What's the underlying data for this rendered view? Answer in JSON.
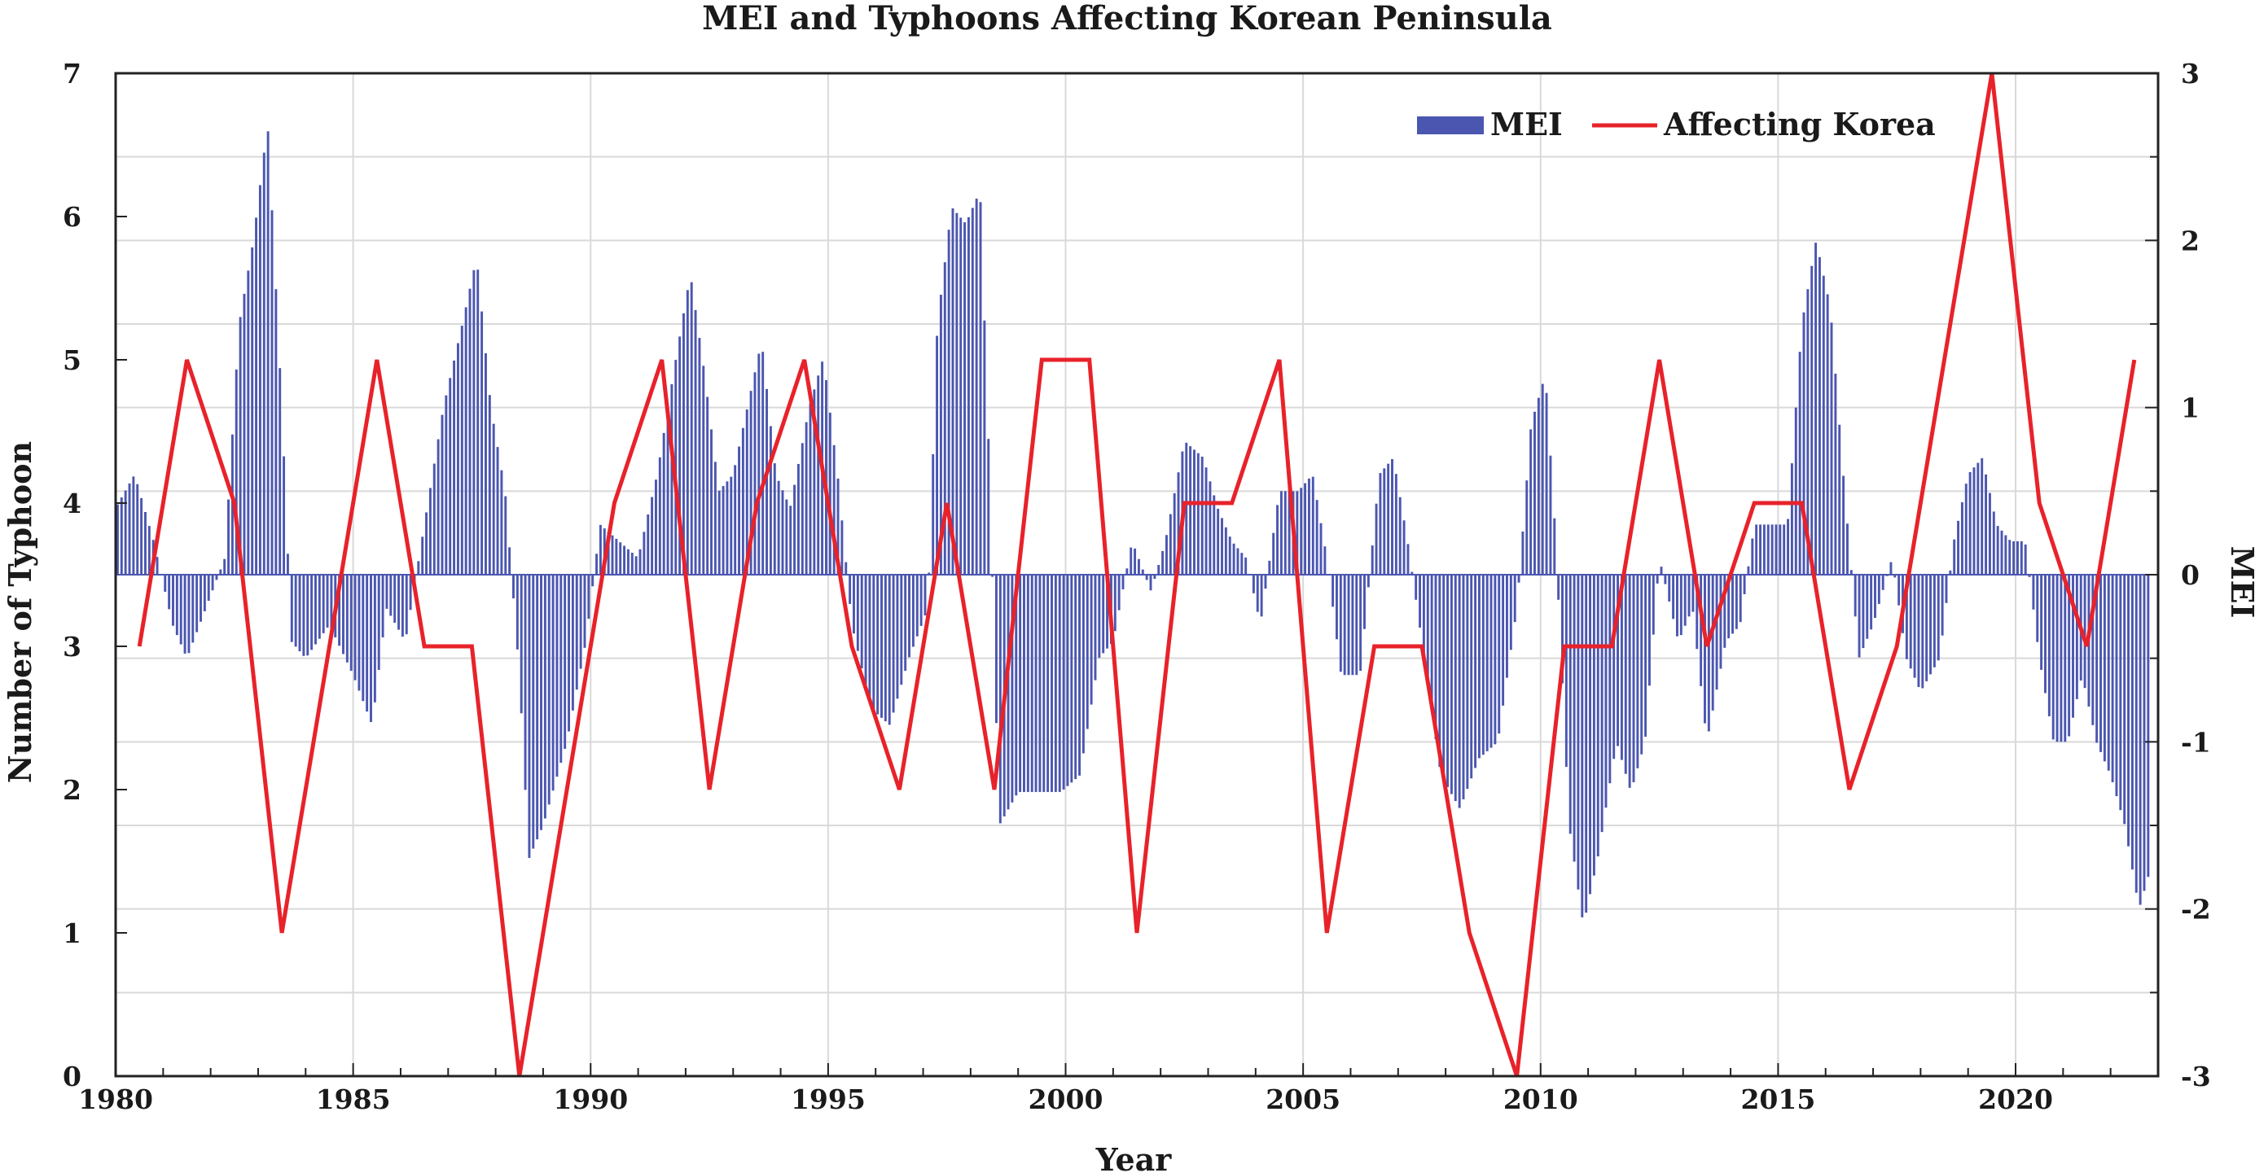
{
  "chart_data": {
    "type": "bar+line",
    "title": "MEI and Typhoons Affecting Korean Peninsula",
    "xlabel": "Year",
    "ylabel_left": "Number of Typhoon",
    "ylabel_right": "MEI",
    "xlim": [
      1980,
      2023
    ],
    "ylim_left": [
      0,
      7
    ],
    "ylim_right": [
      -3,
      3
    ],
    "xticks": [
      "1980",
      "1985",
      "1990",
      "1995",
      "2000",
      "2005",
      "2010",
      "2015",
      "2020"
    ],
    "yticks_left": [
      "0",
      "1",
      "2",
      "3",
      "4",
      "5",
      "6",
      "7"
    ],
    "yticks_right": [
      "-3",
      "-2",
      "-1",
      "0",
      "1",
      "2",
      "3"
    ],
    "grid": true,
    "legend_position": "top-right",
    "colors": {
      "mei": "#4b56b0",
      "korea": "#e8222a",
      "grid": "#d9d9d9",
      "axis": "#222222"
    },
    "series": [
      {
        "name": "MEI",
        "type": "bar",
        "frequency": "bi-monthly",
        "start": 1980.0,
        "anchors": [
          [
            1980.0,
            0.4
          ],
          [
            1980.4,
            0.6
          ],
          [
            1980.8,
            0.2
          ],
          [
            1981.2,
            -0.3
          ],
          [
            1981.5,
            -0.5
          ],
          [
            1981.9,
            -0.2
          ],
          [
            1982.3,
            0.1
          ],
          [
            1982.6,
            1.5
          ],
          [
            1982.9,
            2.0
          ],
          [
            1983.2,
            2.7
          ],
          [
            1983.5,
            1.0
          ],
          [
            1983.7,
            -0.4
          ],
          [
            1984.0,
            -0.5
          ],
          [
            1984.5,
            -0.3
          ],
          [
            1985.0,
            -0.6
          ],
          [
            1985.4,
            -0.9
          ],
          [
            1985.7,
            -0.2
          ],
          [
            1986.1,
            -0.4
          ],
          [
            1986.5,
            0.3
          ],
          [
            1986.9,
            1.0
          ],
          [
            1987.3,
            1.5
          ],
          [
            1987.6,
            1.9
          ],
          [
            1987.9,
            1.0
          ],
          [
            1988.2,
            0.5
          ],
          [
            1988.5,
            -0.6
          ],
          [
            1988.7,
            -1.7
          ],
          [
            1989.0,
            -1.5
          ],
          [
            1989.5,
            -1.0
          ],
          [
            1989.9,
            -0.4
          ],
          [
            1990.2,
            0.3
          ],
          [
            1990.6,
            0.2
          ],
          [
            1991.0,
            0.1
          ],
          [
            1991.4,
            0.6
          ],
          [
            1991.8,
            1.3
          ],
          [
            1992.1,
            1.8
          ],
          [
            1992.4,
            1.2
          ],
          [
            1992.7,
            0.5
          ],
          [
            1993.0,
            0.6
          ],
          [
            1993.3,
            1.0
          ],
          [
            1993.6,
            1.4
          ],
          [
            1993.9,
            0.6
          ],
          [
            1994.2,
            0.4
          ],
          [
            1994.6,
            1.0
          ],
          [
            1994.9,
            1.3
          ],
          [
            1995.2,
            0.6
          ],
          [
            1995.5,
            -0.3
          ],
          [
            1995.9,
            -0.8
          ],
          [
            1996.3,
            -0.9
          ],
          [
            1996.7,
            -0.5
          ],
          [
            1997.1,
            -0.2
          ],
          [
            1997.3,
            1.5
          ],
          [
            1997.6,
            2.2
          ],
          [
            1997.9,
            2.1
          ],
          [
            1998.2,
            2.3
          ],
          [
            1998.4,
            0.6
          ],
          [
            1998.6,
            -1.5
          ],
          [
            1999.0,
            -1.3
          ],
          [
            1999.5,
            -1.3
          ],
          [
            1999.9,
            -1.3
          ],
          [
            2000.3,
            -1.2
          ],
          [
            2000.7,
            -0.5
          ],
          [
            2001.0,
            -0.4
          ],
          [
            2001.4,
            0.2
          ],
          [
            2001.8,
            -0.1
          ],
          [
            2002.1,
            0.2
          ],
          [
            2002.5,
            0.8
          ],
          [
            2002.9,
            0.7
          ],
          [
            2003.2,
            0.4
          ],
          [
            2003.5,
            0.2
          ],
          [
            2003.8,
            0.1
          ],
          [
            2004.1,
            -0.3
          ],
          [
            2004.5,
            0.5
          ],
          [
            2004.9,
            0.5
          ],
          [
            2005.2,
            0.6
          ],
          [
            2005.5,
            0.1
          ],
          [
            2005.8,
            -0.6
          ],
          [
            2006.2,
            -0.6
          ],
          [
            2006.6,
            0.6
          ],
          [
            2006.9,
            0.7
          ],
          [
            2007.2,
            0.2
          ],
          [
            2007.5,
            -0.4
          ],
          [
            2007.9,
            -1.2
          ],
          [
            2008.3,
            -1.4
          ],
          [
            2008.7,
            -1.1
          ],
          [
            2009.1,
            -1.0
          ],
          [
            2009.5,
            -0.2
          ],
          [
            2009.8,
            0.9
          ],
          [
            2010.1,
            1.2
          ],
          [
            2010.3,
            0.3
          ],
          [
            2010.6,
            -1.5
          ],
          [
            2010.9,
            -2.1
          ],
          [
            2011.2,
            -1.7
          ],
          [
            2011.6,
            -1.0
          ],
          [
            2011.9,
            -1.3
          ],
          [
            2012.2,
            -1.0
          ],
          [
            2012.5,
            0.1
          ],
          [
            2012.9,
            -0.4
          ],
          [
            2013.2,
            -0.2
          ],
          [
            2013.5,
            -1.0
          ],
          [
            2013.9,
            -0.4
          ],
          [
            2014.2,
            -0.3
          ],
          [
            2014.5,
            0.3
          ],
          [
            2014.9,
            0.3
          ],
          [
            2015.2,
            0.3
          ],
          [
            2015.5,
            1.5
          ],
          [
            2015.8,
            2.0
          ],
          [
            2016.1,
            1.6
          ],
          [
            2016.4,
            0.5
          ],
          [
            2016.7,
            -0.5
          ],
          [
            2017.0,
            -0.3
          ],
          [
            2017.4,
            0.1
          ],
          [
            2017.7,
            -0.5
          ],
          [
            2018.0,
            -0.7
          ],
          [
            2018.4,
            -0.5
          ],
          [
            2018.7,
            0.2
          ],
          [
            2019.0,
            0.6
          ],
          [
            2019.3,
            0.7
          ],
          [
            2019.6,
            0.3
          ],
          [
            2019.9,
            0.2
          ],
          [
            2020.2,
            0.2
          ],
          [
            2020.5,
            -0.5
          ],
          [
            2020.8,
            -1.0
          ],
          [
            2021.1,
            -1.0
          ],
          [
            2021.4,
            -0.6
          ],
          [
            2021.7,
            -1.0
          ],
          [
            2022.0,
            -1.2
          ],
          [
            2022.3,
            -1.5
          ],
          [
            2022.6,
            -2.0
          ],
          [
            2022.8,
            -1.8
          ]
        ]
      },
      {
        "name": "Affecting Korea",
        "type": "line",
        "x": [
          1980.5,
          1981.5,
          1982.5,
          1983.5,
          1984.5,
          1985.5,
          1986.5,
          1987.5,
          1988.5,
          1989.5,
          1990.5,
          1991.5,
          1992.5,
          1993.5,
          1994.5,
          1995.5,
          1996.5,
          1997.5,
          1998.5,
          1999.5,
          2000.5,
          2001.5,
          2002.5,
          2003.5,
          2004.5,
          2005.5,
          2006.5,
          2007.5,
          2008.5,
          2009.5,
          2010.5,
          2011.5,
          2012.5,
          2013.5,
          2014.5,
          2015.5,
          2016.5,
          2017.5,
          2018.5,
          2019.5,
          2020.5,
          2021.5,
          2022.5
        ],
        "values": [
          3,
          5,
          4,
          1,
          3,
          5,
          3,
          3,
          0,
          2,
          4,
          5,
          2,
          4,
          5,
          3,
          2,
          4,
          2,
          5,
          5,
          1,
          4,
          4,
          5,
          1,
          3,
          3,
          1,
          0,
          3,
          3,
          5,
          3,
          4,
          4,
          2,
          3,
          5,
          7,
          4,
          3,
          5
        ]
      }
    ]
  }
}
